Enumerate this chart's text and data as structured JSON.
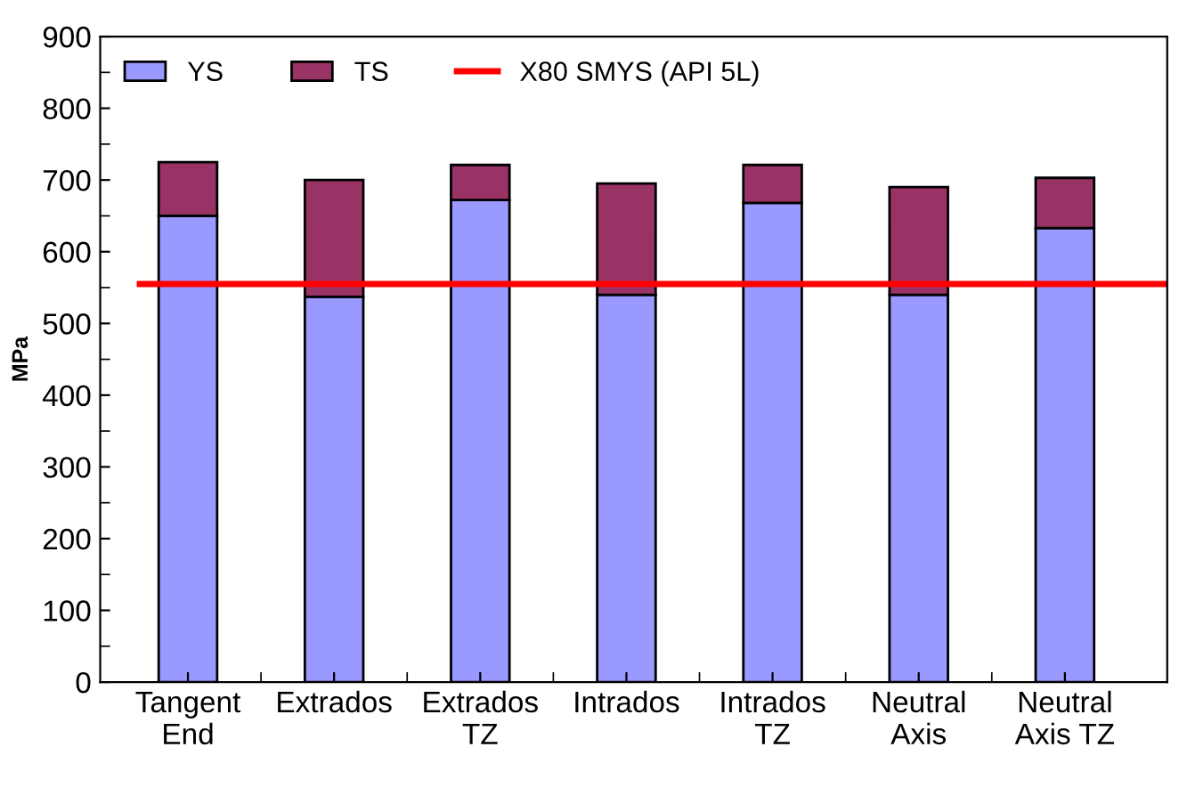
{
  "chart_data": {
    "type": "bar",
    "stacked": true,
    "ylabel": "MPa",
    "categories": [
      "Tangent\nEnd",
      "Extrados",
      "Extrados\nTZ",
      "Intrados",
      "Intrados\nTZ",
      "Neutral\nAxis",
      "Neutral\nAxis TZ"
    ],
    "series": [
      {
        "name": "YS",
        "color": "#9999ff",
        "values": [
          650,
          537,
          672,
          540,
          668,
          540,
          633
        ]
      },
      {
        "name": "TS",
        "color": "#993366",
        "values": [
          75,
          163,
          49,
          155,
          53,
          150,
          70
        ]
      }
    ],
    "ref_lines": [
      {
        "axis": "y",
        "value": 555,
        "label": "X80 SMYS (API 5L)",
        "color": "#ff0000",
        "line_style": "solid"
      }
    ],
    "ylim": [
      0,
      900
    ],
    "yticks": [
      0,
      100,
      200,
      300,
      400,
      500,
      600,
      700,
      800,
      900
    ],
    "grid": false,
    "legend": "top left"
  }
}
